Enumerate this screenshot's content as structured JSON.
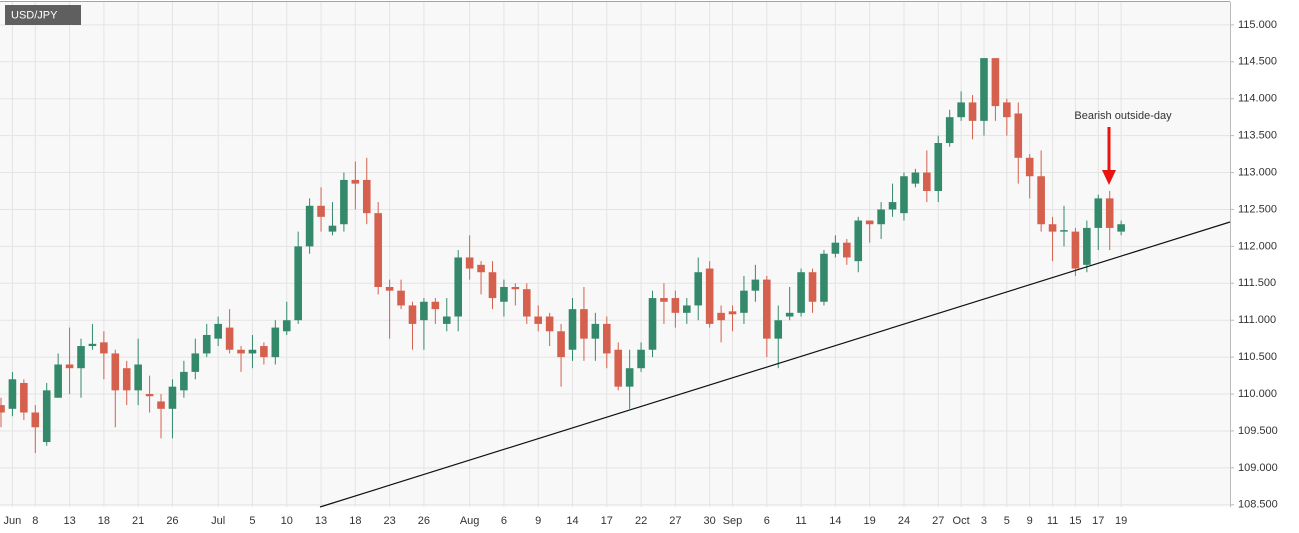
{
  "chart_data": {
    "type": "candlestick",
    "title": "USD/JPY",
    "annotation": "Bearish outside-day",
    "categories": [
      null,
      "Jun",
      null,
      "8",
      null,
      null,
      "13",
      null,
      null,
      "18",
      null,
      null,
      "21",
      null,
      null,
      "26",
      null,
      null,
      null,
      "Jul",
      null,
      null,
      "5",
      null,
      null,
      "10",
      null,
      null,
      "13",
      null,
      null,
      "18",
      null,
      null,
      "23",
      null,
      null,
      "26",
      null,
      null,
      null,
      "Aug",
      null,
      null,
      "6",
      null,
      null,
      "9",
      null,
      null,
      "14",
      null,
      null,
      "17",
      null,
      null,
      "22",
      null,
      null,
      "27",
      null,
      null,
      "30",
      null,
      "Sep",
      null,
      null,
      "6",
      null,
      null,
      "11",
      null,
      null,
      "14",
      null,
      null,
      "19",
      null,
      null,
      "24",
      null,
      null,
      "27",
      null,
      "Oct",
      null,
      "3",
      null,
      "5",
      null,
      "9",
      null,
      "11",
      null,
      "15",
      null,
      "17",
      null,
      "19"
    ],
    "open": [
      109.85,
      109.8,
      110.15,
      109.75,
      109.35,
      109.95,
      110.4,
      110.35,
      110.65,
      110.7,
      110.55,
      110.35,
      110.05,
      110.0,
      109.9,
      109.8,
      110.05,
      110.3,
      110.55,
      110.75,
      110.9,
      110.6,
      110.55,
      110.65,
      110.5,
      110.85,
      111.0,
      112.0,
      112.55,
      112.2,
      112.3,
      112.9,
      112.9,
      112.45,
      111.45,
      111.4,
      111.2,
      111.0,
      111.25,
      110.95,
      111.05,
      111.85,
      111.75,
      111.65,
      111.25,
      111.45,
      111.42,
      111.05,
      111.05,
      110.85,
      110.6,
      111.15,
      110.75,
      110.95,
      110.6,
      110.1,
      110.35,
      110.6,
      111.3,
      111.3,
      111.1,
      111.2,
      111.7,
      111.1,
      111.12,
      111.1,
      111.4,
      111.55,
      110.75,
      111.05,
      111.1,
      111.65,
      111.25,
      111.9,
      112.05,
      111.8,
      112.35,
      112.3,
      112.5,
      112.45,
      112.85,
      113.0,
      112.75,
      113.4,
      113.75,
      113.95,
      113.7,
      114.55,
      113.95,
      113.8,
      113.2,
      112.95,
      112.3,
      112.2,
      112.2,
      111.75,
      112.25,
      112.65,
      112.2
    ],
    "high": [
      109.95,
      110.3,
      110.2,
      109.85,
      110.15,
      110.55,
      110.9,
      110.75,
      110.95,
      110.85,
      110.6,
      110.45,
      110.75,
      110.25,
      110.0,
      110.2,
      110.45,
      110.75,
      110.95,
      111.05,
      111.15,
      110.65,
      110.8,
      110.7,
      111.0,
      111.25,
      112.2,
      112.65,
      112.8,
      112.6,
      113.0,
      113.15,
      113.2,
      112.6,
      111.55,
      111.55,
      111.25,
      111.3,
      111.3,
      111.3,
      111.95,
      112.15,
      111.8,
      111.8,
      111.55,
      111.5,
      111.5,
      111.2,
      111.1,
      110.95,
      111.3,
      111.45,
      111.1,
      111.05,
      110.7,
      110.6,
      110.7,
      111.4,
      111.5,
      111.4,
      111.3,
      111.85,
      111.8,
      111.2,
      111.2,
      111.6,
      111.75,
      111.6,
      111.2,
      111.45,
      111.7,
      111.7,
      111.95,
      112.15,
      112.1,
      112.4,
      112.35,
      112.6,
      112.85,
      113.0,
      113.05,
      113.3,
      113.5,
      113.85,
      114.1,
      114.05,
      114.55,
      114.55,
      114.0,
      113.95,
      113.25,
      113.3,
      112.4,
      112.55,
      112.25,
      112.35,
      112.7,
      112.75,
      112.35
    ],
    "low": [
      109.55,
      109.7,
      109.65,
      109.2,
      109.3,
      109.95,
      110.0,
      109.95,
      110.6,
      110.2,
      109.55,
      109.85,
      109.85,
      109.75,
      109.4,
      109.4,
      109.95,
      110.2,
      110.5,
      110.65,
      110.55,
      110.3,
      110.35,
      110.4,
      110.4,
      110.8,
      110.95,
      111.9,
      112.2,
      112.15,
      112.2,
      112.5,
      112.3,
      111.35,
      110.75,
      111.15,
      110.6,
      110.6,
      110.95,
      110.85,
      110.85,
      111.55,
      111.35,
      111.15,
      111.05,
      111.2,
      110.95,
      110.85,
      110.65,
      110.1,
      110.45,
      110.45,
      110.45,
      110.35,
      110.05,
      109.8,
      110.3,
      110.5,
      110.95,
      110.9,
      110.95,
      111.0,
      110.9,
      110.7,
      110.85,
      110.95,
      111.25,
      110.5,
      110.35,
      111.0,
      111.05,
      111.1,
      111.2,
      111.85,
      111.75,
      111.65,
      112.05,
      112.1,
      112.4,
      112.35,
      112.8,
      112.6,
      112.6,
      113.35,
      113.7,
      113.45,
      113.5,
      113.7,
      113.5,
      112.85,
      112.65,
      112.2,
      111.8,
      112.0,
      111.6,
      111.65,
      111.95,
      111.95,
      112.15
    ],
    "close": [
      109.75,
      110.2,
      109.75,
      109.55,
      110.05,
      110.4,
      110.35,
      110.65,
      110.68,
      110.55,
      110.05,
      110.05,
      110.4,
      109.97,
      109.8,
      110.1,
      110.3,
      110.55,
      110.8,
      110.95,
      110.6,
      110.55,
      110.6,
      110.5,
      110.9,
      111.0,
      112.0,
      112.55,
      112.4,
      112.28,
      112.9,
      112.85,
      112.45,
      111.45,
      111.4,
      111.2,
      110.95,
      111.25,
      111.15,
      111.05,
      111.85,
      111.7,
      111.65,
      111.3,
      111.45,
      111.42,
      111.05,
      110.95,
      110.85,
      110.5,
      111.15,
      110.75,
      110.95,
      110.55,
      110.1,
      110.35,
      110.6,
      111.3,
      111.25,
      111.1,
      111.2,
      111.65,
      110.95,
      111.0,
      111.08,
      111.4,
      111.55,
      110.75,
      111.0,
      111.1,
      111.65,
      111.25,
      111.9,
      112.05,
      111.85,
      112.35,
      112.3,
      112.5,
      112.6,
      112.95,
      113.0,
      112.75,
      113.4,
      113.75,
      113.95,
      113.7,
      114.55,
      113.9,
      113.75,
      113.2,
      112.95,
      112.3,
      112.2,
      112.22,
      111.7,
      112.25,
      112.65,
      112.25,
      112.3
    ],
    "up_color": "#35896b",
    "down_color": "#d5604e",
    "ylim": [
      108.47,
      115.31
    ],
    "yticks": [
      {
        "value": 108.5,
        "label": "108.500"
      },
      {
        "value": 109,
        "label": "109.000"
      },
      {
        "value": 109.5,
        "label": "109.500"
      },
      {
        "value": 110,
        "label": "110.000"
      },
      {
        "value": 110.5,
        "label": "110.500"
      },
      {
        "value": 111,
        "label": "111.000"
      },
      {
        "value": 111.5,
        "label": "111.500"
      },
      {
        "value": 112,
        "label": "112.000"
      },
      {
        "value": 112.5,
        "label": "112.500"
      },
      {
        "value": 113,
        "label": "113.000"
      },
      {
        "value": 113.5,
        "label": "113.500"
      },
      {
        "value": 114,
        "label": "114.000"
      },
      {
        "value": 114.5,
        "label": "114.500"
      },
      {
        "value": 115,
        "label": "115.000"
      }
    ],
    "grid": true
  }
}
